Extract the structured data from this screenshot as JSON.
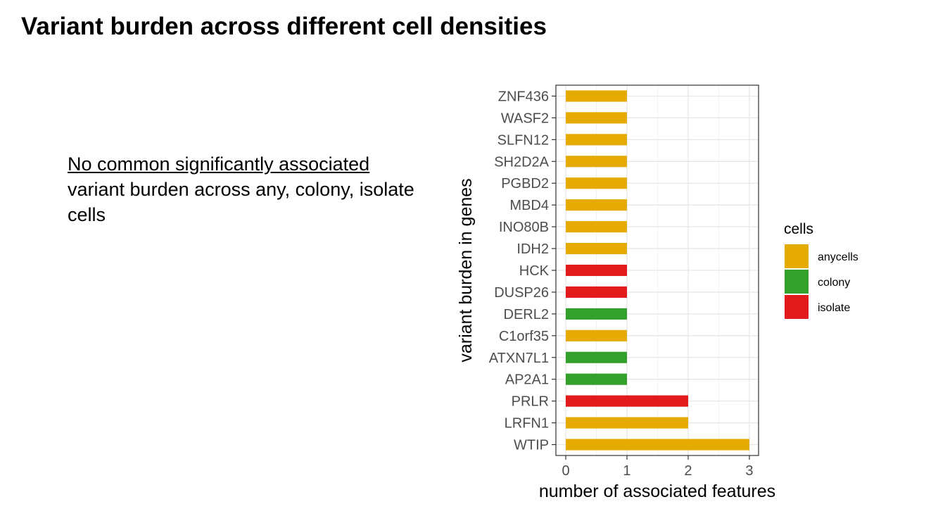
{
  "slide": {
    "title": "Variant burden across different cell densities",
    "note_underlined": "No common significantly associated",
    "note_rest": "variant burden across any, colony, isolate cells"
  },
  "chart_data": {
    "type": "bar",
    "orientation": "horizontal",
    "xlabel": "number of associated features",
    "ylabel": "variant burden in genes",
    "xlim": [
      0,
      3.15
    ],
    "x_ticks": [
      0,
      1,
      2,
      3
    ],
    "grid": true,
    "legend": {
      "title": "cells",
      "position": "right",
      "entries": [
        {
          "name": "anycells",
          "color": "#E6AB02"
        },
        {
          "name": "colony",
          "color": "#33A02C"
        },
        {
          "name": "isolate",
          "color": "#E31A1C"
        }
      ]
    },
    "categories": [
      "ZNF436",
      "WASF2",
      "SLFN12",
      "SH2D2A",
      "PGBD2",
      "MBD4",
      "INO80B",
      "IDH2",
      "HCK",
      "DUSP26",
      "DERL2",
      "C1orf35",
      "ATXN7L1",
      "AP2A1",
      "PRLR",
      "LRFN1",
      "WTIP"
    ],
    "values": [
      1,
      1,
      1,
      1,
      1,
      1,
      1,
      1,
      1,
      1,
      1,
      1,
      1,
      1,
      2,
      2,
      3
    ],
    "groups": [
      "anycells",
      "anycells",
      "anycells",
      "anycells",
      "anycells",
      "anycells",
      "anycells",
      "anycells",
      "isolate",
      "isolate",
      "colony",
      "anycells",
      "colony",
      "colony",
      "isolate",
      "anycells",
      "anycells"
    ]
  }
}
